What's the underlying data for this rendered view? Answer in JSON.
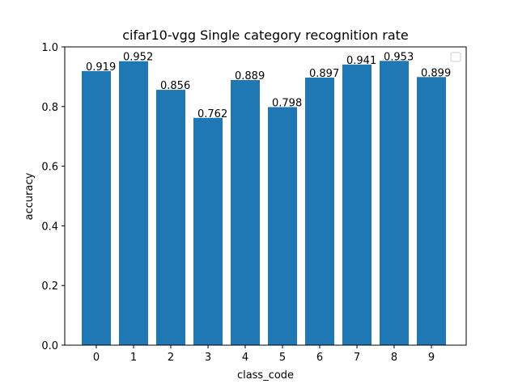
{
  "chart_data": {
    "type": "bar",
    "title": "cifar10-vgg Single category recognition rate",
    "xlabel": "class_code",
    "ylabel": "accuracy",
    "categories": [
      "0",
      "1",
      "2",
      "3",
      "4",
      "5",
      "6",
      "7",
      "8",
      "9"
    ],
    "values": [
      0.919,
      0.952,
      0.856,
      0.762,
      0.889,
      0.798,
      0.897,
      0.941,
      0.953,
      0.899
    ],
    "data_labels": [
      "0.919",
      "0.952",
      "0.856",
      "0.762",
      "0.889",
      "0.798",
      "0.897",
      "0.941",
      "0.953",
      "0.899"
    ],
    "ylim": [
      0,
      1.0
    ],
    "yticks": [
      "0.0",
      "0.2",
      "0.4",
      "0.6",
      "0.8",
      "1.0"
    ],
    "grid": false,
    "legend": "top-right (empty)",
    "bar_color": "#1f77b4"
  }
}
